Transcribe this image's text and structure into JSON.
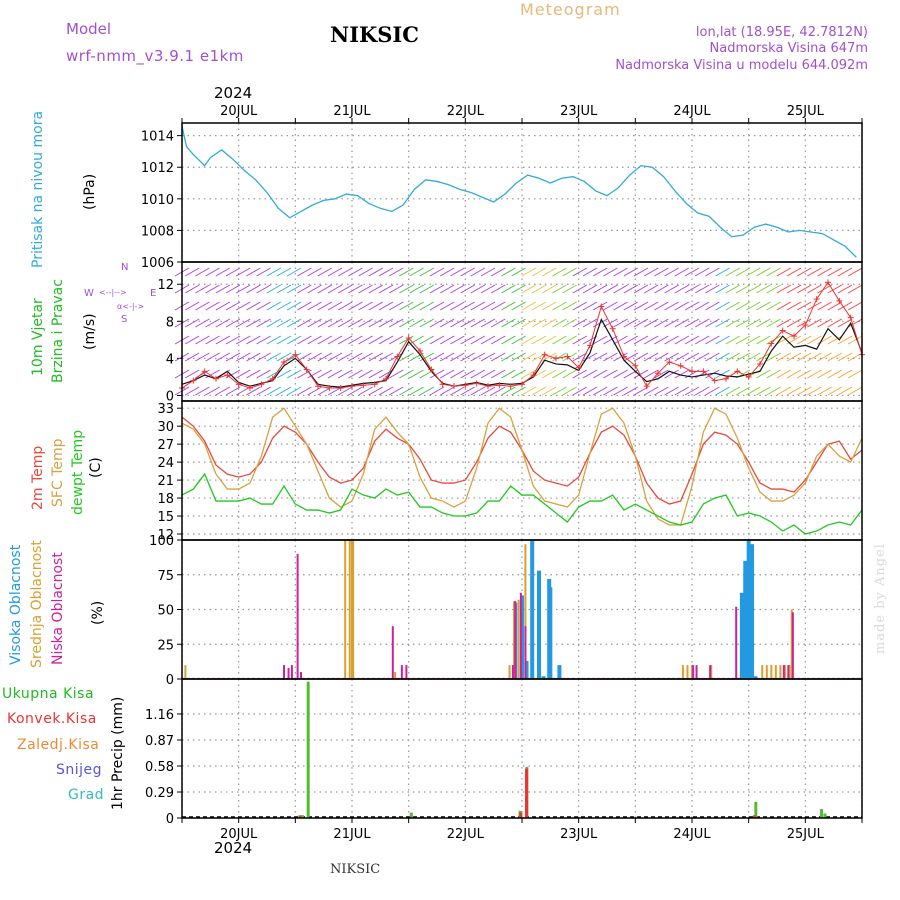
{
  "header": {
    "model_label": "Model",
    "model_name": "wrf-nmm_v3.9.1  e1km",
    "station": "NIKSIC",
    "meteogram": "Meteogram",
    "lonlat": "lon,lat (18.95E, 42.7812N)",
    "elevation": "Nadmorska Visina 647m",
    "model_elevation": "Nadmorska Visina u modelu 644.092m"
  },
  "x_axis": {
    "year": "2024",
    "day_labels": [
      "20JUL",
      "21JUL",
      "22JUL",
      "23JUL",
      "24JUL",
      "25JUL"
    ],
    "day_positions": [
      0.5,
      1.5,
      2.5,
      3.5,
      4.5,
      5.5
    ],
    "range_days": [
      0,
      6
    ]
  },
  "footer": {
    "station": "NIKSIC",
    "credit": "made by Angel"
  },
  "panels": {
    "pressure": {
      "label": "Pritisak na nivou mora",
      "unit": "(hPa)",
      "color": "#33aadd"
    },
    "wind": {
      "label1": "10m Vjetar",
      "label2": "Brzina i Pravac",
      "unit": "(m/s)",
      "compass_n": "N",
      "compass_w": "W",
      "compass_e": "E",
      "compass_s": "S",
      "compass_row1": "<--|-->",
      "compass_row2": "α<-|->"
    },
    "temp": {
      "label_2m": "2m Temp",
      "label_sfc": "SFC Temp",
      "label_dew": "dewpt Temp",
      "unit": "(C)"
    },
    "cloud": {
      "label_high": "Visoka Oblacnost",
      "label_mid": "Srednja Oblacnost",
      "label_low": "Niska Oblacnost",
      "unit": "(%)"
    },
    "precip": {
      "legend": [
        "Ukupna Kisa",
        "Konvek.Kisa",
        "Zaledj.Kisa",
        "Snijeg",
        "Grad"
      ],
      "unit": "1hr Precip (mm)"
    }
  },
  "colors": {
    "pressure": "#33aadd",
    "temp2m": "#e84a3a",
    "sfc": "#d9a040",
    "dewpt": "#22c822",
    "cloud_high": "#2299e0",
    "cloud_mid": "#d9a030",
    "cloud_low": "#cc2299",
    "rain_total": "#55bb33",
    "rain_conv": "#ee3333",
    "rain_frz": "#ee8833",
    "snow": "#5555dd",
    "hail": "#33bbbb"
  },
  "chart_data": [
    {
      "type": "line",
      "title": "Pritisak na nivou mora",
      "ylabel": "(hPa)",
      "ylim": [
        1006,
        1014.8
      ],
      "yticks": [
        1006,
        1008,
        1010,
        1012,
        1014
      ],
      "x_unit": "days from 20JUL 00UTC minus 0.5",
      "x": [
        0,
        0.04,
        0.1,
        0.2,
        0.25,
        0.35,
        0.45,
        0.55,
        0.65,
        0.75,
        0.85,
        0.95,
        1.05,
        1.15,
        1.25,
        1.35,
        1.45,
        1.55,
        1.65,
        1.75,
        1.85,
        1.95,
        2.05,
        2.15,
        2.25,
        2.35,
        2.45,
        2.55,
        2.65,
        2.75,
        2.85,
        2.95,
        3.05,
        3.15,
        3.25,
        3.35,
        3.45,
        3.55,
        3.65,
        3.75,
        3.85,
        3.95,
        4.05,
        4.15,
        4.25,
        4.35,
        4.45,
        4.55,
        4.65,
        4.75,
        4.85,
        4.95,
        5.05,
        5.15,
        5.25,
        5.35,
        5.45,
        5.55,
        5.65,
        5.75,
        5.85,
        5.95
      ],
      "series": [
        {
          "values": [
            1014.6,
            1013.3,
            1012.8,
            1012.1,
            1012.6,
            1013.1,
            1012.5,
            1011.8,
            1011.2,
            1010.4,
            1009.4,
            1008.8,
            1009.2,
            1009.6,
            1009.9,
            1010.0,
            1010.3,
            1010.2,
            1009.7,
            1009.4,
            1009.2,
            1009.6,
            1010.6,
            1011.2,
            1011.1,
            1010.9,
            1010.6,
            1010.4,
            1010.1,
            1009.8,
            1010.3,
            1011.0,
            1011.5,
            1011.3,
            1011.0,
            1011.3,
            1011.4,
            1011.1,
            1010.5,
            1010.2,
            1010.7,
            1011.5,
            1012.1,
            1012.0,
            1011.4,
            1010.5,
            1009.7,
            1009.1,
            1008.9,
            1008.2,
            1007.6,
            1007.7,
            1008.2,
            1008.4,
            1008.2,
            1007.9,
            1008.0,
            1007.9,
            1007.8,
            1007.4,
            1007.0,
            1006.3
          ]
        }
      ]
    },
    {
      "type": "line",
      "title": "10m Vjetar Brzina i Pravac",
      "ylabel": "(m/s)",
      "ylim": [
        -0.6,
        14.4
      ],
      "yticks": [
        0,
        4,
        8,
        12
      ],
      "x": [
        0,
        0.1,
        0.2,
        0.3,
        0.4,
        0.5,
        0.6,
        0.7,
        0.8,
        0.9,
        1.0,
        1.1,
        1.2,
        1.3,
        1.4,
        1.5,
        1.6,
        1.7,
        1.8,
        1.9,
        2.0,
        2.1,
        2.2,
        2.3,
        2.4,
        2.5,
        2.6,
        2.7,
        2.8,
        2.9,
        3.0,
        3.1,
        3.2,
        3.3,
        3.4,
        3.5,
        3.6,
        3.7,
        3.8,
        3.9,
        4.0,
        4.1,
        4.2,
        4.3,
        4.4,
        4.5,
        4.6,
        4.7,
        4.8,
        4.9,
        5.0,
        5.1,
        5.2,
        5.3,
        5.4,
        5.5,
        5.6,
        5.7,
        5.8,
        5.9,
        6.0
      ],
      "series": [
        {
          "name": "speed",
          "values": [
            1.2,
            1.6,
            2.2,
            1.8,
            2.6,
            1.4,
            1.0,
            1.3,
            1.6,
            3.2,
            4.0,
            2.8,
            1.2,
            1.0,
            0.9,
            1.1,
            1.3,
            1.4,
            1.6,
            3.6,
            5.8,
            4.4,
            2.6,
            1.3,
            1.0,
            1.2,
            1.4,
            1.1,
            1.3,
            1.2,
            1.3,
            2.0,
            3.8,
            3.4,
            3.3,
            2.7,
            4.6,
            8.2,
            6.0,
            3.8,
            2.6,
            1.5,
            1.8,
            2.6,
            2.2,
            2.0,
            2.2,
            2.4,
            2.1,
            2.0,
            2.3,
            2.6,
            4.8,
            6.4,
            5.2,
            5.4,
            5.0,
            7.2,
            6.0,
            7.8,
            4.6
          ]
        },
        {
          "name": "gust",
          "values": [
            0.8,
            1.6,
            2.6,
            1.8,
            2.2,
            1.2,
            0.8,
            1.2,
            1.8,
            3.6,
            4.4,
            2.8,
            1.0,
            0.8,
            0.8,
            1.0,
            1.1,
            1.2,
            1.8,
            4.2,
            6.2,
            4.8,
            2.8,
            1.2,
            1.0,
            1.1,
            1.3,
            1.0,
            1.1,
            1.0,
            1.2,
            2.2,
            4.4,
            4.0,
            4.2,
            3.0,
            5.4,
            9.6,
            7.2,
            4.2,
            3.2,
            1.0,
            2.4,
            3.6,
            3.2,
            2.6,
            2.6,
            1.6,
            1.8,
            2.6,
            2.0,
            3.4,
            5.6,
            7.0,
            6.4,
            7.6,
            10.4,
            12.2,
            10.2,
            8.4,
            4.4
          ]
        }
      ]
    },
    {
      "type": "line",
      "title": "2m Temp / SFC Temp / dewpt Temp",
      "ylabel": "(C)",
      "ylim": [
        11,
        34.2
      ],
      "yticks": [
        12,
        15,
        18,
        21,
        24,
        27,
        30,
        33
      ],
      "x": [
        0,
        0.1,
        0.2,
        0.3,
        0.4,
        0.5,
        0.6,
        0.7,
        0.8,
        0.9,
        1.0,
        1.1,
        1.2,
        1.3,
        1.4,
        1.5,
        1.6,
        1.7,
        1.8,
        1.9,
        2.0,
        2.1,
        2.2,
        2.3,
        2.4,
        2.5,
        2.6,
        2.7,
        2.8,
        2.9,
        3.0,
        3.1,
        3.2,
        3.3,
        3.4,
        3.5,
        3.6,
        3.7,
        3.8,
        3.9,
        4.0,
        4.1,
        4.2,
        4.3,
        4.4,
        4.5,
        4.6,
        4.7,
        4.8,
        4.9,
        5.0,
        5.1,
        5.2,
        5.3,
        5.4,
        5.5,
        5.6,
        5.7,
        5.8,
        5.9,
        6.0
      ],
      "series": [
        {
          "name": "2m Temp",
          "values": [
            31.5,
            30.0,
            27.5,
            23.5,
            22.0,
            21.5,
            22.0,
            24.0,
            28.0,
            30.0,
            29.0,
            27.0,
            24.0,
            21.5,
            20.5,
            21.0,
            23.0,
            27.5,
            29.5,
            28.0,
            27.0,
            24.5,
            21.0,
            20.5,
            20.5,
            21.0,
            24.0,
            28.0,
            30.0,
            29.0,
            26.0,
            22.5,
            21.0,
            20.5,
            20.0,
            21.5,
            25.5,
            29.0,
            30.0,
            28.5,
            25.0,
            20.5,
            18.0,
            17.0,
            17.5,
            22.0,
            27.0,
            29.0,
            28.5,
            27.0,
            24.0,
            20.5,
            19.5,
            19.5,
            19.0,
            21.0,
            24.0,
            27.0,
            27.5,
            24.5,
            26.0
          ]
        },
        {
          "name": "SFC Temp",
          "values": [
            30.5,
            29.5,
            27.0,
            22.0,
            19.5,
            19.5,
            20.5,
            25.0,
            31.5,
            33.0,
            30.0,
            27.0,
            22.5,
            18.0,
            16.5,
            17.5,
            22.0,
            29.5,
            31.5,
            29.0,
            27.0,
            21.5,
            18.0,
            17.5,
            16.5,
            17.5,
            23.0,
            30.5,
            33.0,
            31.5,
            26.0,
            20.0,
            17.5,
            17.0,
            16.5,
            18.5,
            25.5,
            32.0,
            33.0,
            30.5,
            25.0,
            17.5,
            14.5,
            13.5,
            13.5,
            20.0,
            29.0,
            33.0,
            32.0,
            28.0,
            23.0,
            19.0,
            17.5,
            17.5,
            18.5,
            20.5,
            25.0,
            27.0,
            25.0,
            24.0,
            28.0
          ]
        },
        {
          "name": "dewpt Temp",
          "values": [
            18.5,
            19.5,
            22.0,
            17.5,
            17.5,
            17.5,
            18.0,
            17.0,
            17.0,
            20.0,
            17.0,
            16.0,
            16.0,
            15.5,
            16.0,
            19.5,
            18.5,
            18.0,
            19.5,
            18.5,
            19.0,
            16.5,
            16.5,
            15.5,
            15.0,
            15.0,
            15.5,
            17.5,
            17.5,
            20.0,
            18.5,
            18.5,
            17.0,
            15.5,
            14.0,
            16.5,
            17.5,
            17.5,
            18.5,
            16.0,
            17.0,
            16.0,
            15.0,
            14.0,
            13.5,
            14.0,
            17.0,
            18.0,
            18.5,
            15.0,
            15.5,
            15.0,
            14.0,
            12.5,
            13.5,
            12.0,
            12.5,
            13.5,
            14.0,
            13.5,
            16.0
          ]
        }
      ]
    },
    {
      "type": "bar",
      "title": "Visoka / Srednja / Niska Oblacnost",
      "ylabel": "(%)",
      "ylim": [
        0,
        100
      ],
      "yticks": [
        0,
        25,
        50,
        75,
        100
      ],
      "series": [
        {
          "name": "Visoka Oblacnost",
          "x": [
            2.94,
            3.0,
            3.04,
            3.09,
            3.15,
            3.19,
            3.24,
            3.25,
            3.33,
            4.94,
            4.97,
            5.0,
            5.03,
            5.06
          ],
          "values": [
            55,
            60,
            13,
            100,
            78,
            2,
            72,
            66,
            10,
            62,
            85,
            100,
            97,
            2
          ]
        },
        {
          "name": "Srednja Oblacnost",
          "x": [
            0.03,
            1.44,
            1.48,
            1.5,
            1.51,
            1.88,
            2.89,
            2.93,
            2.97,
            3.03,
            4.42,
            4.46,
            4.5,
            4.67,
            5.12,
            5.16,
            5.2,
            5.24,
            5.28,
            5.32,
            5.36,
            5.38
          ],
          "values": [
            10,
            100,
            100,
            100,
            100,
            5,
            10,
            56,
            57,
            97,
            10,
            10,
            10,
            10,
            10,
            10,
            10,
            10,
            10,
            10,
            10,
            50
          ]
        },
        {
          "name": "Niska Oblacnost",
          "x": [
            0.9,
            0.94,
            0.97,
            1.02,
            1.05,
            1.86,
            1.94,
            1.98,
            2.92,
            2.94,
            2.99,
            3.03,
            4.51,
            4.54,
            4.66,
            4.89,
            5.31,
            5.35,
            5.39
          ],
          "values": [
            10,
            8,
            10,
            90,
            5,
            38,
            10,
            10,
            10,
            56,
            62,
            38,
            10,
            10,
            10,
            52,
            10,
            10,
            48
          ]
        }
      ]
    },
    {
      "type": "bar",
      "title": "1hr Precip",
      "ylabel": "1hr Precip (mm)",
      "ylim": [
        0,
        1.55
      ],
      "yticks": [
        0,
        0.29,
        0.58,
        0.87,
        1.16
      ],
      "series": [
        {
          "name": "Ukupna Kisa",
          "x": [
            1.05,
            1.1,
            1.05,
            2.01,
            2.97,
            3.03,
            5.05,
            5.63,
            5.66
          ],
          "values": [
            0.03,
            1.52,
            0.03,
            0.06,
            0.08,
            0.57,
            0.18,
            0.1,
            0.05
          ]
        },
        {
          "name": "Konvek.Kisa",
          "x": [
            1.04,
            2.99,
            3.04,
            5.05
          ],
          "values": [
            0.03,
            0.06,
            0.55,
            0.03
          ]
        }
      ]
    }
  ]
}
